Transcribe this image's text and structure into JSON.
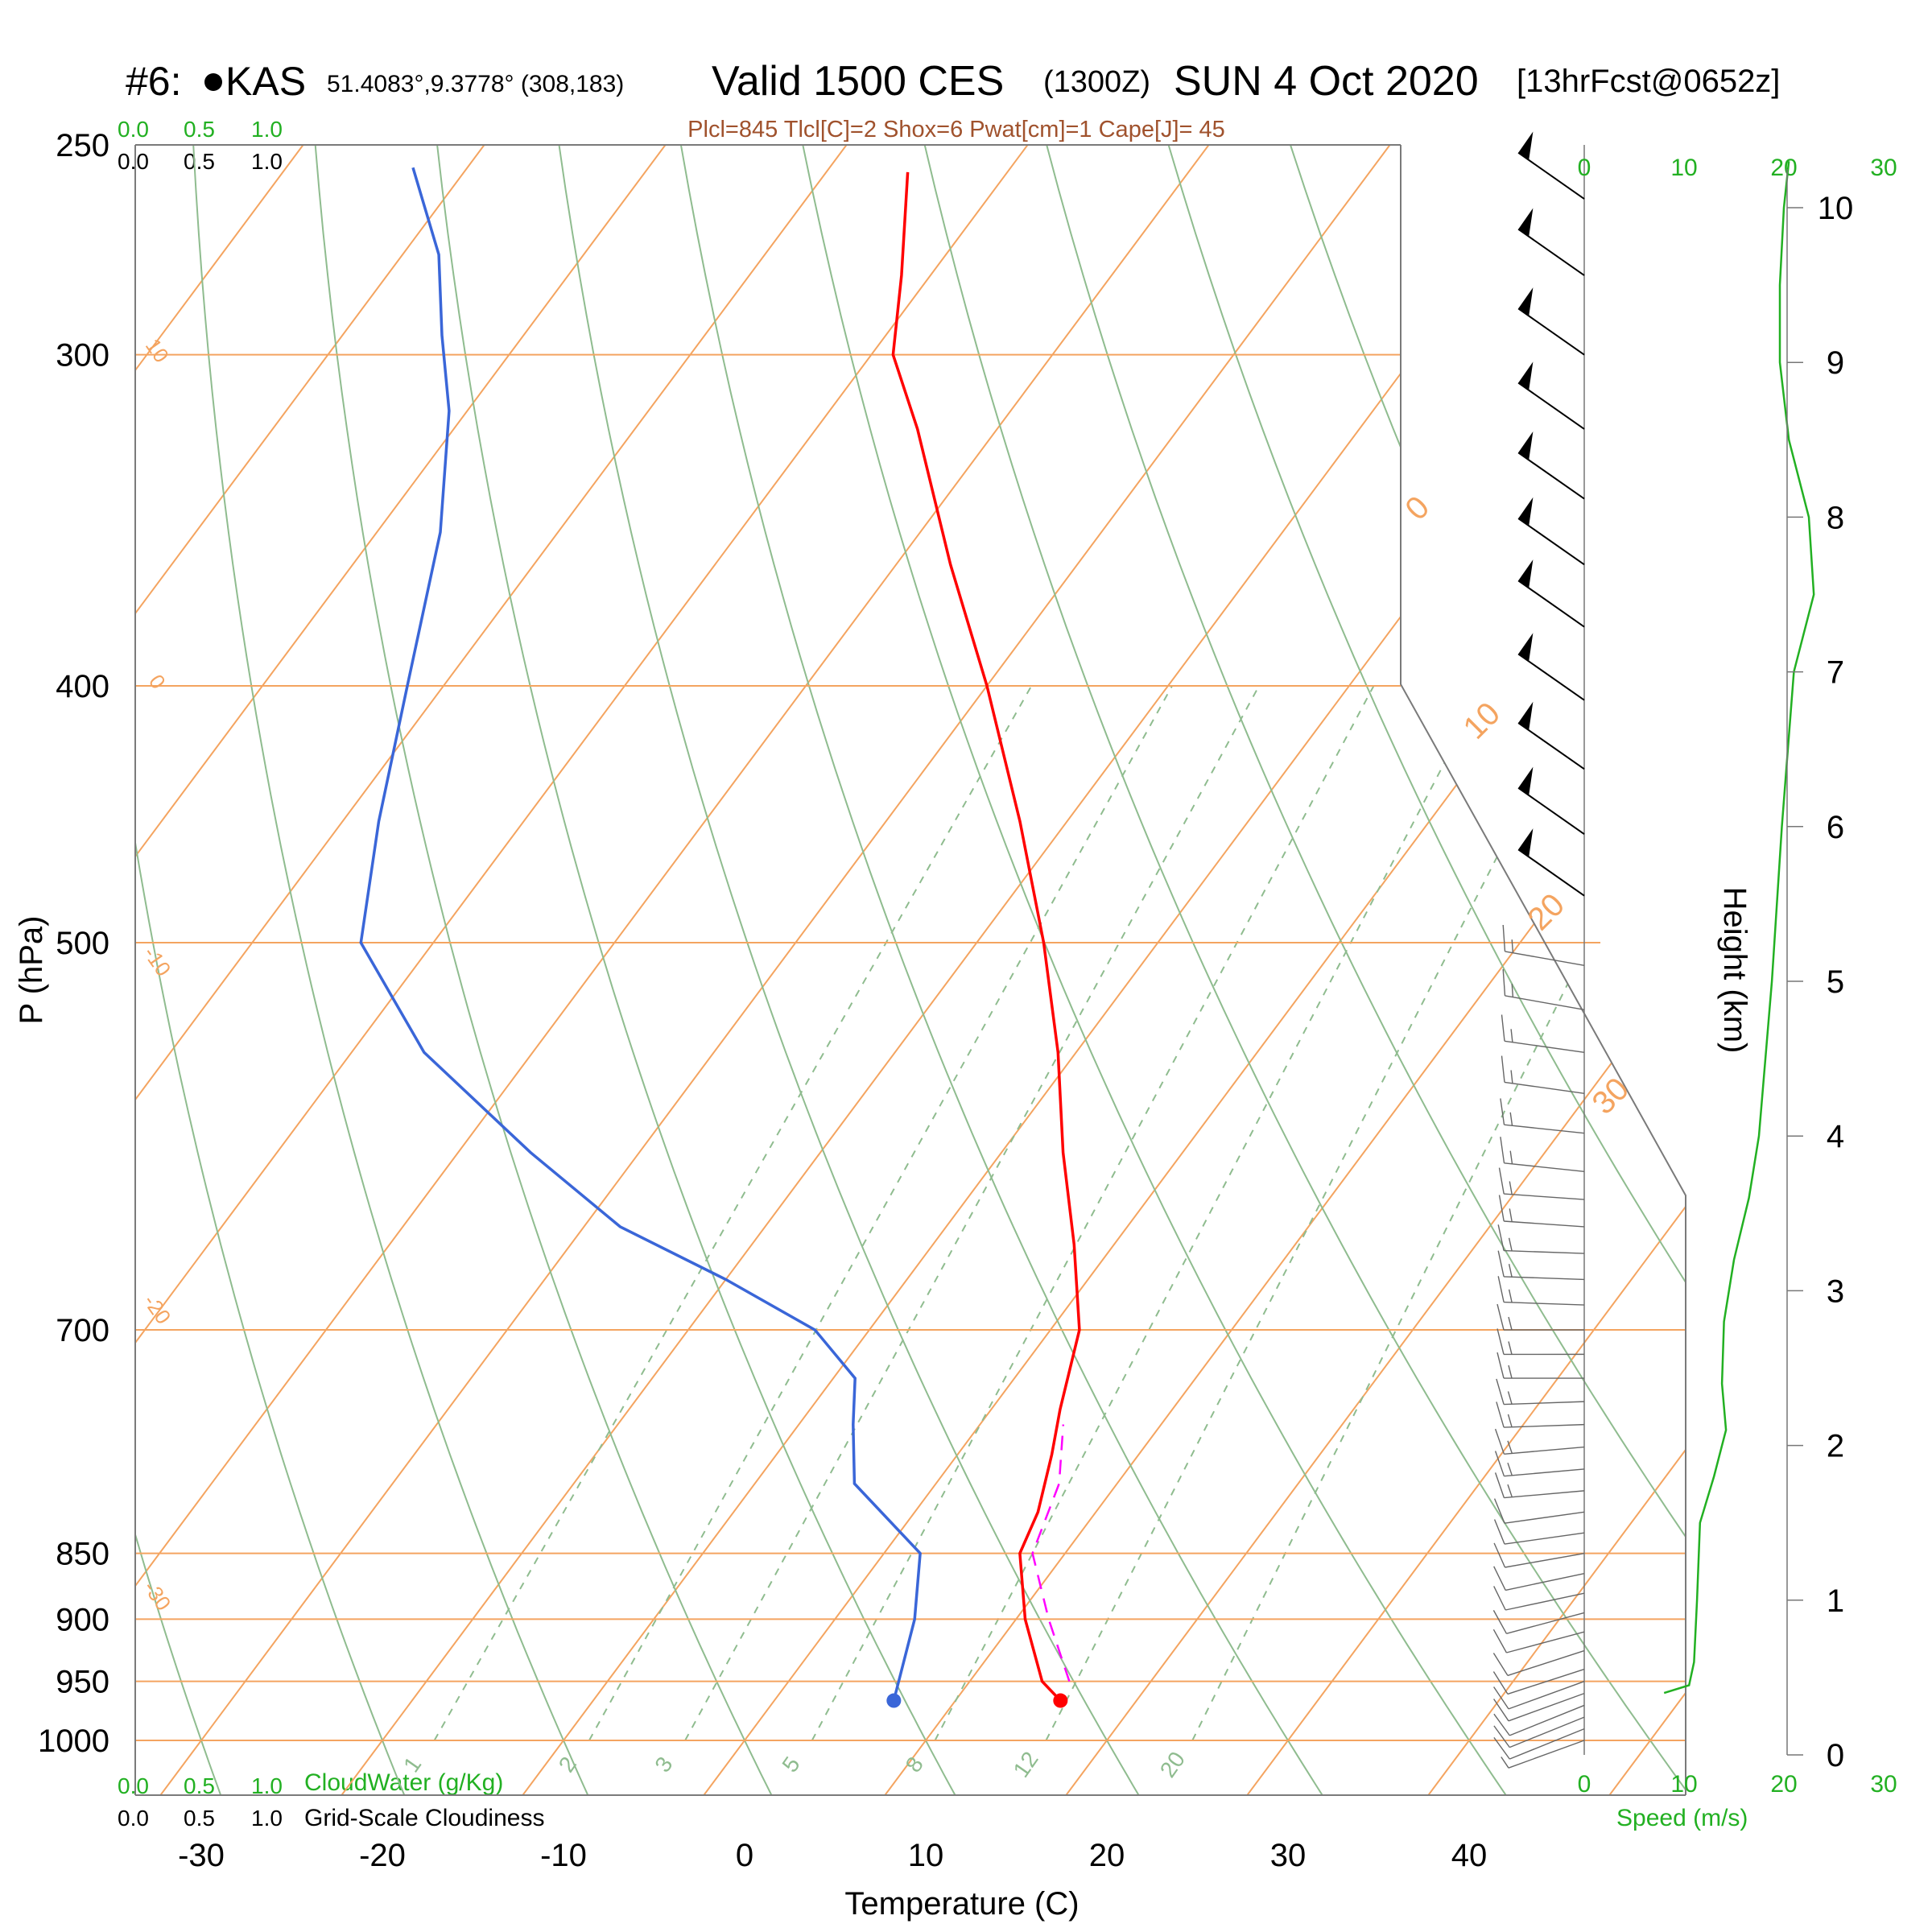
{
  "header": {
    "station_id": "#6:",
    "station_name": "KAS",
    "coords": "51.4083°,9.3778° (308,183)",
    "valid": "Valid 1500 CES",
    "utc": "(1300Z)",
    "date": "SUN 4 Oct 2020",
    "forecast": "[13hrFcst@0652z]",
    "indices": "Plcl=845 Tlcl[C]=2 Shox=6 Pwat[cm]=1 Cape[J]= 45"
  },
  "colors": {
    "temperature": "#ff0000",
    "dewpoint": "#3a66d8",
    "parcel": "#ff00ff",
    "isotherm": "#f4a460",
    "dry_adiabat": "#8fbc8f",
    "mixing_ratio": "#8fbc8f",
    "wind_speed": "#22b022",
    "indices": "#a0522d"
  },
  "chart_data": {
    "type": "skew-t",
    "xlabel": "Temperature (C)",
    "ylabel": "P (hPa)",
    "x_ticks": [
      -30,
      -20,
      -10,
      0,
      10,
      20,
      30,
      40
    ],
    "p_ticks": [
      250,
      300,
      400,
      500,
      700,
      850,
      900,
      950,
      1000
    ],
    "plim": [
      1050,
      250
    ],
    "isotherm_labels": [
      {
        "value": "10",
        "p": 300
      },
      {
        "value": "0",
        "p": 400
      },
      {
        "value": "-10",
        "p": 510
      },
      {
        "value": "-20",
        "p": 690
      },
      {
        "value": "-30",
        "p": 885
      },
      {
        "value": "0",
        "p": 345
      },
      {
        "value": "10",
        "p": 415
      },
      {
        "value": "20",
        "p": 490
      },
      {
        "value": "30",
        "p": 575
      }
    ],
    "mixing_ratio_labels": [
      "1",
      "2",
      "3",
      "5",
      "8",
      "12",
      "20"
    ],
    "temperature": {
      "name": "Temperature",
      "points": [
        {
          "p": 966,
          "t": 15.8
        },
        {
          "p": 950,
          "t": 14.0
        },
        {
          "p": 900,
          "t": 10.5
        },
        {
          "p": 850,
          "t": 7.5
        },
        {
          "p": 820,
          "t": 6.8
        },
        {
          "p": 780,
          "t": 5.2
        },
        {
          "p": 750,
          "t": 3.8
        },
        {
          "p": 700,
          "t": 1.6
        },
        {
          "p": 650,
          "t": -2.2
        },
        {
          "p": 600,
          "t": -6.6
        },
        {
          "p": 550,
          "t": -11.0
        },
        {
          "p": 500,
          "t": -16.3
        },
        {
          "p": 450,
          "t": -22.6
        },
        {
          "p": 400,
          "t": -30.0
        },
        {
          "p": 360,
          "t": -37.0
        },
        {
          "p": 320,
          "t": -44.4
        },
        {
          "p": 300,
          "t": -48.8
        },
        {
          "p": 280,
          "t": -51.6
        },
        {
          "p": 256,
          "t": -55.5
        }
      ]
    },
    "dewpoint": {
      "name": "Dewpoint",
      "points": [
        {
          "p": 966,
          "t": 6.6
        },
        {
          "p": 900,
          "t": 4.4
        },
        {
          "p": 850,
          "t": 2.0
        },
        {
          "p": 800,
          "t": -4.5
        },
        {
          "p": 760,
          "t": -7.0
        },
        {
          "p": 730,
          "t": -8.8
        },
        {
          "p": 700,
          "t": -13.0
        },
        {
          "p": 670,
          "t": -20.0
        },
        {
          "p": 640,
          "t": -28.0
        },
        {
          "p": 600,
          "t": -36.0
        },
        {
          "p": 550,
          "t": -46.0
        },
        {
          "p": 500,
          "t": -54.0
        },
        {
          "p": 450,
          "t": -58.0
        },
        {
          "p": 400,
          "t": -62.0
        },
        {
          "p": 350,
          "t": -66.5
        },
        {
          "p": 315,
          "t": -71.0
        },
        {
          "p": 295,
          "t": -74.5
        },
        {
          "p": 275,
          "t": -78.0
        },
        {
          "p": 255,
          "t": -83.0
        }
      ]
    },
    "parcel": {
      "name": "Parcel",
      "points": [
        {
          "p": 950,
          "t": 15.5
        },
        {
          "p": 900,
          "t": 11.8
        },
        {
          "p": 850,
          "t": 8.2
        },
        {
          "p": 800,
          "t": 6.8
        },
        {
          "p": 760,
          "t": 4.6
        }
      ]
    },
    "wind_speed": {
      "label": "Speed (m/s)",
      "ticks": [
        0,
        10,
        20,
        30
      ],
      "points": [
        {
          "h": 0.4,
          "s": 8.0
        },
        {
          "h": 0.45,
          "s": 10.5
        },
        {
          "h": 0.6,
          "s": 11.0
        },
        {
          "h": 1.0,
          "s": 11.3
        },
        {
          "h": 1.5,
          "s": 11.6
        },
        {
          "h": 1.8,
          "s": 13.0
        },
        {
          "h": 2.1,
          "s": 14.2
        },
        {
          "h": 2.4,
          "s": 13.8
        },
        {
          "h": 2.8,
          "s": 14.0
        },
        {
          "h": 3.2,
          "s": 15.0
        },
        {
          "h": 3.6,
          "s": 16.5
        },
        {
          "h": 4.0,
          "s": 17.5
        },
        {
          "h": 5.0,
          "s": 18.8
        },
        {
          "h": 6.0,
          "s": 19.8
        },
        {
          "h": 7.0,
          "s": 21.0
        },
        {
          "h": 7.5,
          "s": 23.0
        },
        {
          "h": 8.0,
          "s": 22.5
        },
        {
          "h": 8.5,
          "s": 20.5
        },
        {
          "h": 9.0,
          "s": 19.6
        },
        {
          "h": 9.5,
          "s": 19.6
        },
        {
          "h": 10.0,
          "s": 20.0
        },
        {
          "h": 10.3,
          "s": 20.5
        }
      ]
    },
    "height_axis": {
      "label": "Height (km)",
      "ticks": [
        0,
        1,
        2,
        3,
        4,
        5,
        6,
        7,
        8,
        9,
        10
      ],
      "top_km": 10.3
    },
    "wind_barbs": [
      {
        "p": 1000,
        "dir": 250,
        "spd": 4
      },
      {
        "p": 990,
        "dir": 248,
        "spd": 5
      },
      {
        "p": 980,
        "dir": 248,
        "spd": 5
      },
      {
        "p": 970,
        "dir": 248,
        "spd": 6
      },
      {
        "p": 960,
        "dir": 250,
        "spd": 6
      },
      {
        "p": 950,
        "dir": 250,
        "spd": 6
      },
      {
        "p": 940,
        "dir": 252,
        "spd": 6
      },
      {
        "p": 925,
        "dir": 252,
        "spd": 6
      },
      {
        "p": 910,
        "dir": 255,
        "spd": 6
      },
      {
        "p": 895,
        "dir": 255,
        "spd": 6
      },
      {
        "p": 880,
        "dir": 258,
        "spd": 6
      },
      {
        "p": 865,
        "dir": 258,
        "spd": 6
      },
      {
        "p": 850,
        "dir": 260,
        "spd": 6
      },
      {
        "p": 835,
        "dir": 262,
        "spd": 6
      },
      {
        "p": 820,
        "dir": 262,
        "spd": 6
      },
      {
        "p": 805,
        "dir": 265,
        "spd": 7
      },
      {
        "p": 790,
        "dir": 265,
        "spd": 7
      },
      {
        "p": 775,
        "dir": 265,
        "spd": 7
      },
      {
        "p": 760,
        "dir": 268,
        "spd": 7
      },
      {
        "p": 745,
        "dir": 268,
        "spd": 7
      },
      {
        "p": 730,
        "dir": 270,
        "spd": 7
      },
      {
        "p": 715,
        "dir": 270,
        "spd": 7
      },
      {
        "p": 700,
        "dir": 270,
        "spd": 7
      },
      {
        "p": 685,
        "dir": 272,
        "spd": 8
      },
      {
        "p": 670,
        "dir": 272,
        "spd": 8
      },
      {
        "p": 655,
        "dir": 272,
        "spd": 8
      },
      {
        "p": 640,
        "dir": 274,
        "spd": 8
      },
      {
        "p": 625,
        "dir": 274,
        "spd": 8
      },
      {
        "p": 610,
        "dir": 276,
        "spd": 8
      },
      {
        "p": 590,
        "dir": 276,
        "spd": 9
      },
      {
        "p": 570,
        "dir": 278,
        "spd": 9
      },
      {
        "p": 550,
        "dir": 278,
        "spd": 9
      },
      {
        "p": 530,
        "dir": 280,
        "spd": 9
      },
      {
        "p": 510,
        "dir": 280,
        "spd": 9
      },
      {
        "p": 480,
        "dir": 305,
        "spd": 25
      },
      {
        "p": 455,
        "dir": 305,
        "spd": 25
      },
      {
        "p": 430,
        "dir": 305,
        "spd": 25
      },
      {
        "p": 405,
        "dir": 305,
        "spd": 25
      },
      {
        "p": 380,
        "dir": 305,
        "spd": 25
      },
      {
        "p": 360,
        "dir": 305,
        "spd": 25
      },
      {
        "p": 340,
        "dir": 305,
        "spd": 25
      },
      {
        "p": 320,
        "dir": 305,
        "spd": 25
      },
      {
        "p": 300,
        "dir": 305,
        "spd": 25
      },
      {
        "p": 280,
        "dir": 305,
        "spd": 25
      },
      {
        "p": 262,
        "dir": 305,
        "spd": 25
      }
    ]
  },
  "cloud_panel": {
    "cloudwater_ticks": [
      "0.0",
      "0.5",
      "1.0"
    ],
    "cloudiness_ticks": [
      "0.0",
      "0.5",
      "1.0"
    ],
    "cloudwater_label": "CloudWater (g/Kg)",
    "cloudiness_label": "Grid-Scale Cloudiness"
  }
}
